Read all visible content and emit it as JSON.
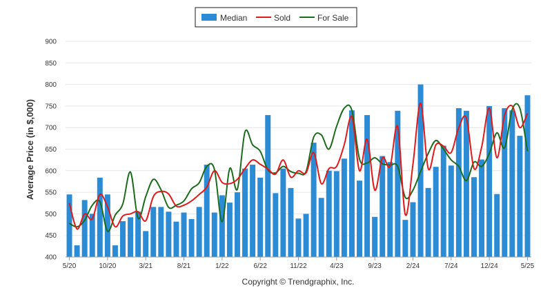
{
  "chart_data": {
    "type": "bar",
    "ylabel": "Average Price (in $,000)",
    "ylim": [
      400,
      900
    ],
    "yticks": [
      400,
      450,
      500,
      550,
      600,
      650,
      700,
      750,
      800,
      850,
      900
    ],
    "grid": true,
    "legend_position": "top-center",
    "x_tick_labels": [
      "5/20",
      "10/20",
      "3/21",
      "8/21",
      "1/22",
      "6/22",
      "11/22",
      "4/23",
      "9/23",
      "2/24",
      "7/24",
      "12/24",
      "5/25"
    ],
    "x_tick_every": 5,
    "categories": [
      "5/20",
      "6/20",
      "7/20",
      "8/20",
      "9/20",
      "10/20",
      "11/20",
      "12/20",
      "1/21",
      "2/21",
      "3/21",
      "4/21",
      "5/21",
      "6/21",
      "7/21",
      "8/21",
      "9/21",
      "10/21",
      "11/21",
      "12/21",
      "1/22",
      "2/22",
      "3/22",
      "4/22",
      "5/22",
      "6/22",
      "7/22",
      "8/22",
      "9/22",
      "10/22",
      "11/22",
      "12/22",
      "1/23",
      "2/23",
      "3/23",
      "4/23",
      "5/23",
      "6/23",
      "7/23",
      "8/23",
      "9/23",
      "10/23",
      "11/23",
      "12/23",
      "1/24",
      "2/24",
      "3/24",
      "4/24",
      "5/24",
      "6/24",
      "7/24",
      "8/24",
      "9/24",
      "10/24",
      "11/24",
      "12/24",
      "1/25",
      "2/25",
      "3/25",
      "4/25",
      "5/25"
    ],
    "series": [
      {
        "name": "Median",
        "kind": "bar",
        "color": "#2b8bd4",
        "values": [
          545,
          427,
          532,
          500,
          584,
          545,
          427,
          483,
          492,
          505,
          460,
          516,
          516,
          505,
          482,
          503,
          488,
          516,
          614,
          503,
          543,
          526,
          550,
          605,
          614,
          584,
          729,
          548,
          605,
          560,
          489,
          500,
          665,
          537,
          600,
          599,
          628,
          740,
          577,
          729,
          493,
          634,
          620,
          739,
          486,
          527,
          800,
          560,
          609,
          658,
          612,
          745,
          739,
          585,
          626,
          750,
          546,
          745,
          740,
          681,
          775
        ]
      },
      {
        "name": "Sold",
        "kind": "line",
        "color": "#e0191b",
        "values": [
          525,
          465,
          500,
          488,
          545,
          516,
          470,
          495,
          500,
          505,
          484,
          540,
          552,
          546,
          518,
          520,
          530,
          545,
          562,
          600,
          573,
          570,
          580,
          605,
          625,
          615,
          604,
          592,
          625,
          585,
          600,
          595,
          642,
          570,
          605,
          610,
          660,
          725,
          600,
          673,
          555,
          630,
          610,
          702,
          498,
          615,
          757,
          605,
          660,
          657,
          642,
          700,
          722,
          605,
          655,
          745,
          630,
          728,
          750,
          700,
          733
        ]
      },
      {
        "name": "For Sale",
        "kind": "line",
        "color": "#1a6b1a",
        "values": [
          478,
          470,
          485,
          520,
          528,
          460,
          497,
          523,
          597,
          490,
          540,
          580,
          556,
          515,
          520,
          530,
          558,
          572,
          610,
          603,
          482,
          605,
          557,
          690,
          660,
          645,
          602,
          595,
          610,
          598,
          594,
          598,
          678,
          683,
          650,
          703,
          745,
          740,
          627,
          618,
          630,
          616,
          613,
          610,
          538,
          555,
          598,
          640,
          670,
          650,
          625,
          610,
          577,
          620,
          610,
          640,
          688,
          653,
          742,
          745,
          645
        ]
      }
    ]
  },
  "copyright": "Copyright © Trendgraphix, Inc."
}
